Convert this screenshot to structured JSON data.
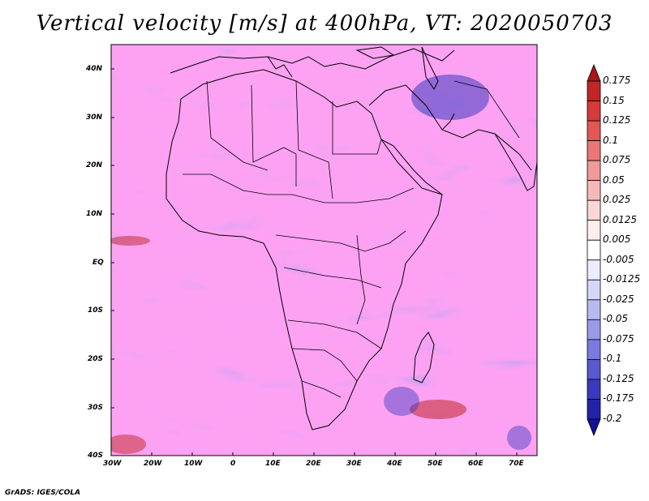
{
  "title": "Vertical velocity [m/s] at 400hPa, VT: 2020050703",
  "credit": "GrADS: IGES/COLA",
  "map": {
    "variable": "Vertical velocity",
    "units": "m/s",
    "level": "400hPa",
    "valid_time": "2020050703",
    "lon_range": [
      -30,
      76
    ],
    "lat_range": [
      -40,
      45
    ],
    "lon_ticks": [
      "30W",
      "20W",
      "10W",
      "0",
      "10E",
      "20E",
      "30E",
      "40E",
      "50E",
      "60E",
      "70E"
    ],
    "lat_ticks": [
      "40N",
      "30N",
      "20N",
      "10N",
      "EQ",
      "10S",
      "20S",
      "30S",
      "40S"
    ]
  },
  "colorbar": {
    "labels": [
      "0.175",
      "0.15",
      "0.125",
      "0.1",
      "0.075",
      "0.05",
      "0.025",
      "0.0125",
      "0.005",
      "-0.005",
      "-0.0125",
      "-0.025",
      "-0.05",
      "-0.075",
      "-0.1",
      "-0.125",
      "-0.175",
      "-0.2"
    ],
    "colors": [
      "#a81818",
      "#c02626",
      "#d63a3a",
      "#e25656",
      "#eb7676",
      "#f29a9a",
      "#f6b9b9",
      "#fad6d6",
      "#fdeeee",
      "#ffffff",
      "#ececfd",
      "#d6d6f8",
      "#b9b9f1",
      "#9a9ae9",
      "#7a7ade",
      "#5858cf",
      "#3a3abf",
      "#2323a8",
      "#12129a"
    ]
  }
}
